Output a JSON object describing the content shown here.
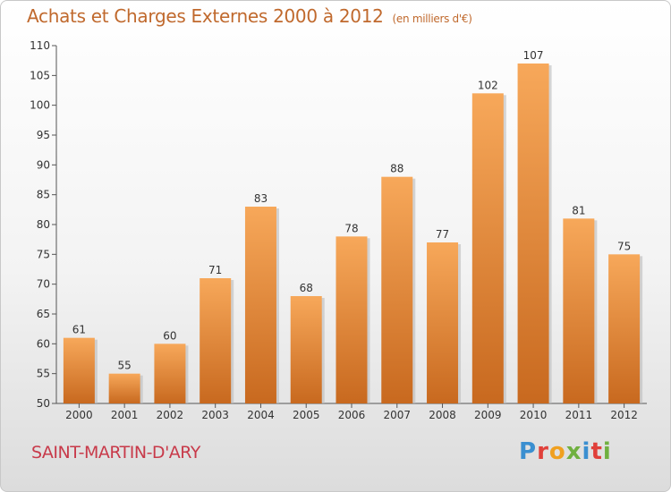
{
  "header": {
    "title": "Achats et Charges Externes 2000 à 2012",
    "unit": "(en milliers d'€)"
  },
  "footer": {
    "commune": "SAINT-MARTIN-D'ARY",
    "brand": "Proxiti"
  },
  "colors": {
    "bar_top": "#f7a85a",
    "bar_bottom": "#c8691f",
    "title": "#c0692d",
    "commune": "#c83a4a"
  },
  "chart_data": {
    "type": "bar",
    "title": "Achats et Charges Externes 2000 à 2012",
    "subtitle": "(en milliers d'€)",
    "categories": [
      "2000",
      "2001",
      "2002",
      "2003",
      "2004",
      "2005",
      "2006",
      "2007",
      "2008",
      "2009",
      "2010",
      "2011",
      "2012"
    ],
    "values": [
      61,
      55,
      60,
      71,
      83,
      68,
      78,
      88,
      77,
      102,
      107,
      81,
      75
    ],
    "ylim": [
      50,
      110
    ],
    "yticks": [
      50,
      55,
      60,
      65,
      70,
      75,
      80,
      85,
      90,
      95,
      100,
      105,
      110
    ],
    "grid": false,
    "data_labels": true
  }
}
